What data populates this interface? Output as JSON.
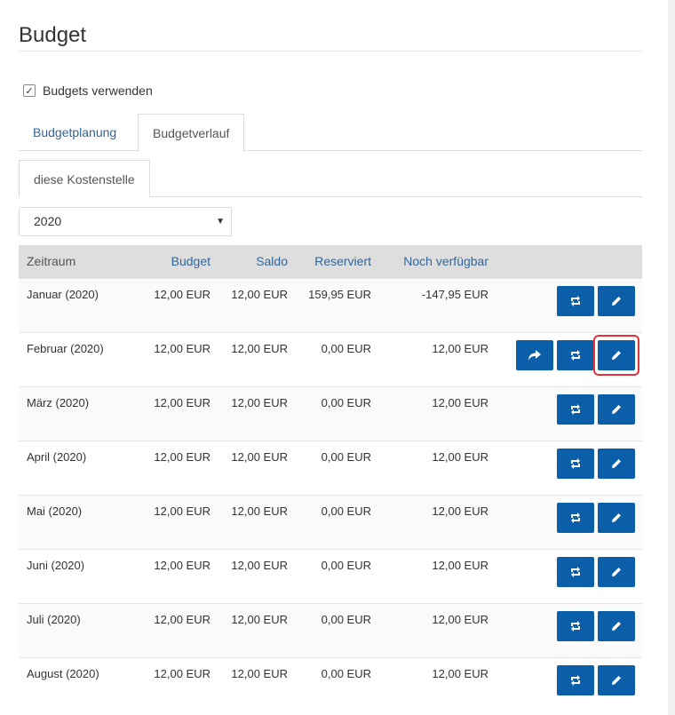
{
  "page": {
    "title": "Budget"
  },
  "settings": {
    "use_budgets_label": "Budgets verwenden",
    "use_budgets_checked": true
  },
  "tabs": [
    {
      "label": "Budgetplanung",
      "active": false
    },
    {
      "label": "Budgetverlauf",
      "active": true
    }
  ],
  "subtabs": [
    {
      "label": "diese Kostenstelle",
      "active": true
    }
  ],
  "year_select": {
    "value": "2020"
  },
  "table": {
    "headers": [
      "Zeitraum",
      "Budget",
      "Saldo",
      "Reserviert",
      "Noch verfügbar"
    ],
    "rows": [
      {
        "period": "Januar (2020)",
        "budget": "12,00 EUR",
        "saldo": "12,00 EUR",
        "reserved": "159,95 EUR",
        "available": "-147,95 EUR",
        "has_forward": false,
        "highlight_edit": false
      },
      {
        "period": "Februar (2020)",
        "budget": "12,00 EUR",
        "saldo": "12,00 EUR",
        "reserved": "0,00 EUR",
        "available": "12,00 EUR",
        "has_forward": true,
        "highlight_edit": true
      },
      {
        "period": "März (2020)",
        "budget": "12,00 EUR",
        "saldo": "12,00 EUR",
        "reserved": "0,00 EUR",
        "available": "12,00 EUR",
        "has_forward": false,
        "highlight_edit": false
      },
      {
        "period": "April (2020)",
        "budget": "12,00 EUR",
        "saldo": "12,00 EUR",
        "reserved": "0,00 EUR",
        "available": "12,00 EUR",
        "has_forward": false,
        "highlight_edit": false
      },
      {
        "period": "Mai (2020)",
        "budget": "12,00 EUR",
        "saldo": "12,00 EUR",
        "reserved": "0,00 EUR",
        "available": "12,00 EUR",
        "has_forward": false,
        "highlight_edit": false
      },
      {
        "period": "Juni (2020)",
        "budget": "12,00 EUR",
        "saldo": "12,00 EUR",
        "reserved": "0,00 EUR",
        "available": "12,00 EUR",
        "has_forward": false,
        "highlight_edit": false
      },
      {
        "period": "Juli (2020)",
        "budget": "12,00 EUR",
        "saldo": "12,00 EUR",
        "reserved": "0,00 EUR",
        "available": "12,00 EUR",
        "has_forward": false,
        "highlight_edit": false
      },
      {
        "period": "August (2020)",
        "budget": "12,00 EUR",
        "saldo": "12,00 EUR",
        "reserved": "0,00 EUR",
        "available": "12,00 EUR",
        "has_forward": false,
        "highlight_edit": false
      }
    ]
  },
  "icons": {
    "forward": "share-forward-icon",
    "reset": "retweet-icon",
    "edit": "pencil-icon"
  },
  "colors": {
    "button": "#0b5ea8",
    "link": "#336699",
    "highlight": "#e0333a",
    "header_bg": "#dedede"
  }
}
